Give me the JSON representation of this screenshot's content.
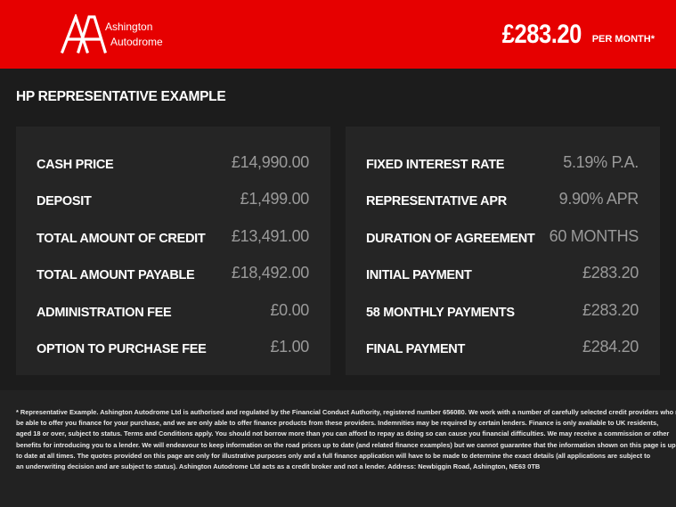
{
  "header": {
    "brand_line1": "Ashington",
    "brand_line2": "Autodrome",
    "price": "£283.20",
    "per_month": "PER MONTH*",
    "accent_color": "#e60000"
  },
  "title": "HP REPRESENTATIVE EXAMPLE",
  "left_rows": [
    {
      "label": "CASH PRICE",
      "value": "£14,990.00"
    },
    {
      "label": "DEPOSIT",
      "value": "£1,499.00"
    },
    {
      "label": "TOTAL AMOUNT OF CREDIT",
      "value": "£13,491.00"
    },
    {
      "label": "TOTAL AMOUNT PAYABLE",
      "value": "£18,492.00"
    },
    {
      "label": "ADMINISTRATION FEE",
      "value": "£0.00"
    },
    {
      "label": "OPTION TO PURCHASE FEE",
      "value": "£1.00"
    }
  ],
  "right_rows": [
    {
      "label": "FIXED INTEREST RATE",
      "value": "5.19% P.A."
    },
    {
      "label": "REPRESENTATIVE APR",
      "value": "9.90% APR"
    },
    {
      "label": "DURATION OF AGREEMENT",
      "value": "60 MONTHS"
    },
    {
      "label": "INITIAL PAYMENT",
      "value": "£283.20"
    },
    {
      "label": "58 MONTHLY PAYMENTS",
      "value": "£283.20"
    },
    {
      "label": "FINAL PAYMENT",
      "value": "£284.20"
    }
  ],
  "footer_lines": [
    "* Representative Example. Ashington Autodrome Ltd is authorised and regulated by the Financial Conduct Authority, registered number 656080. We work with a number of carefully selected credit providers who may",
    "be able to offer you finance for your purchase, and we are only able to offer finance products from these providers. Indemnities may be required by certain lenders. Finance is only available to UK residents,",
    "aged 18 or over, subject to status. Terms and Conditions apply. You should not borrow more than you can afford to repay as doing so can cause you financial difficulties. We may receive a commission or other",
    "benefits for introducing you to a lender. We will endeavour to keep information on the road prices up to date (and related finance examples) but we cannot guarantee that the information shown on this page is up",
    "to date at all times. The quotes provided on this page are only for illustrative purposes only and a full finance application will have to be made to determine the exact details (all applications are subject to",
    "an underwriting decision and are subject to status). Ashington Autodrome Ltd acts as a credit broker and not a lender. Address: Newbiggin Road, Ashington, NE63 0TB"
  ]
}
